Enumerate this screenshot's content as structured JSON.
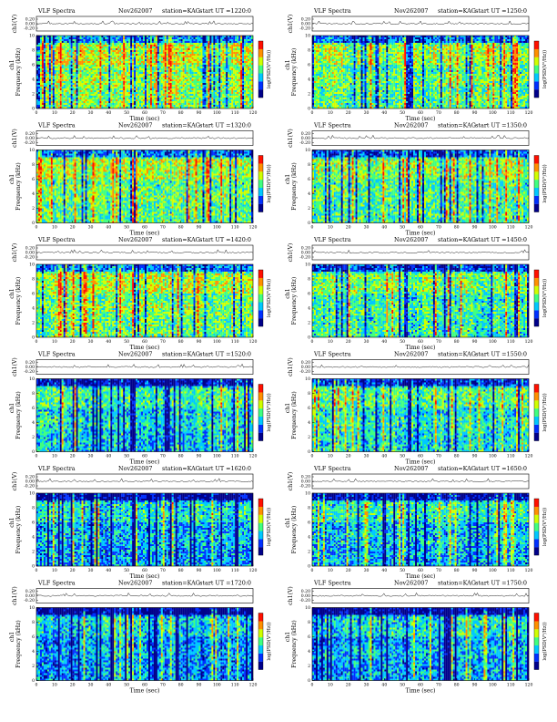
{
  "figure": {
    "header_label": "VLF Spectra",
    "date": "Nov262007",
    "station": "station=KAG",
    "ut_prefix": "start UT ="
  },
  "chart_data": [
    {
      "type": "heatmap",
      "title": "VLF Spectra",
      "date": "Nov262007",
      "station": "station=KAG",
      "start_ut": "1220:0",
      "top_ylabel": "ch1(V)",
      "top_yticks": [
        "0.20",
        "0.00",
        "-0.20"
      ],
      "ylabel": "Frequency (kHz)",
      "channel_label": "ch1",
      "yticks": [
        "0",
        "2",
        "4",
        "6",
        "8",
        "10"
      ],
      "xlabel": "Time (sec)",
      "xticks": [
        "0",
        "10",
        "20",
        "30",
        "40",
        "50",
        "60",
        "70",
        "80",
        "90",
        "100",
        "110",
        "120"
      ],
      "xlim": [
        0,
        120
      ],
      "ylim": [
        0,
        10
      ],
      "colorbar_label": "log(PSD(V²/Hz))",
      "colors": [
        "#00008a",
        "#0030ff",
        "#00c8ff",
        "#40ff80",
        "#d0ff00",
        "#ff9000",
        "#ff1000"
      ],
      "intensity": 0.55
    },
    {
      "type": "heatmap",
      "title": "VLF Spectra",
      "date": "Nov262007",
      "station": "station=KAG",
      "start_ut": "1250:0",
      "top_ylabel": "ch1(V)",
      "top_yticks": [
        "0.20",
        "0.00",
        "-0.20"
      ],
      "ylabel": "Frequency (kHz)",
      "channel_label": "ch1",
      "yticks": [
        "0",
        "2",
        "4",
        "6",
        "8",
        "10"
      ],
      "xlabel": "Time (sec)",
      "xticks": [
        "0",
        "10",
        "20",
        "30",
        "40",
        "50",
        "60",
        "70",
        "80",
        "90",
        "100",
        "110",
        "120"
      ],
      "xlim": [
        0,
        120
      ],
      "ylim": [
        0,
        10
      ],
      "colorbar_label": "log(PSD(V²/Hz))",
      "colors": [
        "#00008a",
        "#0030ff",
        "#00c8ff",
        "#40ff80",
        "#d0ff00",
        "#ff9000",
        "#ff1000"
      ],
      "intensity": 0.5
    },
    {
      "type": "heatmap",
      "title": "VLF Spectra",
      "date": "Nov262007",
      "station": "station=KAG",
      "start_ut": "1320:0",
      "top_ylabel": "ch1(V)",
      "top_yticks": [
        "0.20",
        "0.00",
        "-0.20"
      ],
      "ylabel": "Frequency (kHz)",
      "channel_label": "ch1",
      "yticks": [
        "0",
        "2",
        "4",
        "6",
        "8",
        "10"
      ],
      "xlabel": "Time (sec)",
      "xticks": [
        "0",
        "10",
        "20",
        "30",
        "40",
        "50",
        "60",
        "70",
        "80",
        "90",
        "100",
        "110",
        "120"
      ],
      "xlim": [
        0,
        120
      ],
      "ylim": [
        0,
        10
      ],
      "colorbar_label": "log(PSD(V²/Hz))",
      "colors": [
        "#00008a",
        "#0030ff",
        "#00c8ff",
        "#40ff80",
        "#d0ff00",
        "#ff9000",
        "#ff1000"
      ],
      "intensity": 0.5
    },
    {
      "type": "heatmap",
      "title": "VLF Spectra",
      "date": "Nov262007",
      "station": "station=KAG",
      "start_ut": "1350:0",
      "top_ylabel": "ch1(V)",
      "top_yticks": [
        "0.20",
        "0.00",
        "-0.20"
      ],
      "ylabel": "Frequency (kHz)",
      "channel_label": "ch1",
      "yticks": [
        "0",
        "2",
        "4",
        "6",
        "8",
        "10"
      ],
      "xlabel": "Time (sec)",
      "xticks": [
        "0",
        "10",
        "20",
        "30",
        "40",
        "50",
        "60",
        "70",
        "80",
        "90",
        "100",
        "110",
        "120"
      ],
      "xlim": [
        0,
        120
      ],
      "ylim": [
        0,
        10
      ],
      "colorbar_label": "log(PSD(V²/Hz))",
      "colors": [
        "#00008a",
        "#0030ff",
        "#00c8ff",
        "#40ff80",
        "#d0ff00",
        "#ff9000",
        "#ff1000"
      ],
      "intensity": 0.48
    },
    {
      "type": "heatmap",
      "title": "VLF Spectra",
      "date": "Nov262007",
      "station": "station=KAG",
      "start_ut": "1420:0",
      "top_ylabel": "ch1(V)",
      "top_yticks": [
        "0.20",
        "0.00",
        "-0.20"
      ],
      "ylabel": "Frequency (kHz)",
      "channel_label": "ch1",
      "yticks": [
        "0",
        "2",
        "4",
        "6",
        "8",
        "10"
      ],
      "xlabel": "Time (sec)",
      "xticks": [
        "0",
        "10",
        "20",
        "30",
        "40",
        "50",
        "60",
        "70",
        "80",
        "90",
        "100",
        "110",
        "120"
      ],
      "xlim": [
        0,
        120
      ],
      "ylim": [
        0,
        10
      ],
      "colorbar_label": "log(PSD(V²/Hz))",
      "colors": [
        "#00008a",
        "#0030ff",
        "#00c8ff",
        "#40ff80",
        "#d0ff00",
        "#ff9000",
        "#ff1000"
      ],
      "intensity": 0.52
    },
    {
      "type": "heatmap",
      "title": "VLF Spectra",
      "date": "Nov262007",
      "station": "station=KAG",
      "start_ut": "1450:0",
      "top_ylabel": "ch1(V)",
      "top_yticks": [
        "0.20",
        "0.00",
        "-0.20"
      ],
      "ylabel": "Frequency (kHz)",
      "channel_label": "ch1",
      "yticks": [
        "0",
        "2",
        "4",
        "6",
        "8",
        "10"
      ],
      "xlabel": "Time (sec)",
      "xticks": [
        "0",
        "10",
        "20",
        "30",
        "40",
        "50",
        "60",
        "70",
        "80",
        "90",
        "100",
        "110",
        "120"
      ],
      "xlim": [
        0,
        120
      ],
      "ylim": [
        0,
        10
      ],
      "colorbar_label": "log(PSD(V²/Hz))",
      "colors": [
        "#00008a",
        "#0030ff",
        "#00c8ff",
        "#40ff80",
        "#d0ff00",
        "#ff9000",
        "#ff1000"
      ],
      "intensity": 0.45
    },
    {
      "type": "heatmap",
      "title": "VLF Spectra",
      "date": "Nov262007",
      "station": "station=KAG",
      "start_ut": "1520:0",
      "top_ylabel": "ch1(V)",
      "top_yticks": [
        "0.20",
        "0.00",
        "-0.20"
      ],
      "ylabel": "Frequency (kHz)",
      "channel_label": "ch1",
      "yticks": [
        "0",
        "2",
        "4",
        "6",
        "8",
        "10"
      ],
      "xlabel": "Time (sec)",
      "xticks": [
        "0",
        "10",
        "20",
        "30",
        "40",
        "50",
        "60",
        "70",
        "80",
        "90",
        "100",
        "110",
        "120"
      ],
      "xlim": [
        0,
        120
      ],
      "ylim": [
        0,
        10
      ],
      "colorbar_label": "log(PSD(V²/Hz))",
      "colors": [
        "#00008a",
        "#0030ff",
        "#00c8ff",
        "#40ff80",
        "#d0ff00",
        "#ff9000",
        "#ff1000"
      ],
      "intensity": 0.38
    },
    {
      "type": "heatmap",
      "title": "VLF Spectra",
      "date": "Nov262007",
      "station": "station=KAG",
      "start_ut": "1550:0",
      "top_ylabel": "ch1(V)",
      "top_yticks": [
        "0.20",
        "0.00",
        "-0.20"
      ],
      "ylabel": "Frequency (kHz)",
      "channel_label": "ch1",
      "yticks": [
        "0",
        "2",
        "4",
        "6",
        "8",
        "10"
      ],
      "xlabel": "Time (sec)",
      "xticks": [
        "0",
        "10",
        "20",
        "30",
        "40",
        "50",
        "60",
        "70",
        "80",
        "90",
        "100",
        "110",
        "120"
      ],
      "xlim": [
        0,
        120
      ],
      "ylim": [
        0,
        10
      ],
      "colorbar_label": "log(PSD(V²/Hz))",
      "colors": [
        "#00008a",
        "#0030ff",
        "#00c8ff",
        "#40ff80",
        "#d0ff00",
        "#ff9000",
        "#ff1000"
      ],
      "intensity": 0.4
    },
    {
      "type": "heatmap",
      "title": "VLF Spectra",
      "date": "Nov262007",
      "station": "station=KAG",
      "start_ut": "1620:0",
      "top_ylabel": "ch1(V)",
      "top_yticks": [
        "0.20",
        "0.00",
        "-0.20"
      ],
      "ylabel": "Frequency (kHz)",
      "channel_label": "ch1",
      "yticks": [
        "0",
        "2",
        "4",
        "6",
        "8",
        "10"
      ],
      "xlabel": "Time (sec)",
      "xticks": [
        "0",
        "10",
        "20",
        "30",
        "40",
        "50",
        "60",
        "70",
        "80",
        "90",
        "100",
        "110",
        "120"
      ],
      "xlim": [
        0,
        120
      ],
      "ylim": [
        0,
        10
      ],
      "colorbar_label": "log(PSD(V²/Hz))",
      "colors": [
        "#00008a",
        "#0030ff",
        "#00c8ff",
        "#40ff80",
        "#d0ff00",
        "#ff9000",
        "#ff1000"
      ],
      "intensity": 0.32
    },
    {
      "type": "heatmap",
      "title": "VLF Spectra",
      "date": "Nov262007",
      "station": "station=KAG",
      "start_ut": "1650:0",
      "top_ylabel": "ch1(V)",
      "top_yticks": [
        "0.20",
        "0.00",
        "-0.20"
      ],
      "ylabel": "Frequency (kHz)",
      "channel_label": "ch1",
      "yticks": [
        "0",
        "2",
        "4",
        "6",
        "8",
        "10"
      ],
      "xlabel": "Time (sec)",
      "xticks": [
        "0",
        "10",
        "20",
        "30",
        "40",
        "50",
        "60",
        "70",
        "80",
        "90",
        "100",
        "110",
        "120"
      ],
      "xlim": [
        0,
        120
      ],
      "ylim": [
        0,
        10
      ],
      "colorbar_label": "log(PSD(V²/Hz))",
      "colors": [
        "#00008a",
        "#0030ff",
        "#00c8ff",
        "#40ff80",
        "#d0ff00",
        "#ff9000",
        "#ff1000"
      ],
      "intensity": 0.34
    },
    {
      "type": "heatmap",
      "title": "VLF Spectra",
      "date": "Nov262007",
      "station": "station=KAG",
      "start_ut": "1720:0",
      "top_ylabel": "ch1(V)",
      "top_yticks": [
        "0.20",
        "0.00",
        "-0.20"
      ],
      "ylabel": "Frequency (kHz)",
      "channel_label": "ch1",
      "yticks": [
        "0",
        "2",
        "4",
        "6",
        "8",
        "10"
      ],
      "xlabel": "Time (sec)",
      "xticks": [
        "0",
        "10",
        "20",
        "30",
        "40",
        "50",
        "60",
        "70",
        "80",
        "90",
        "100",
        "110",
        "120"
      ],
      "xlim": [
        0,
        120
      ],
      "ylim": [
        0,
        10
      ],
      "colorbar_label": "log(PSD(V²/Hz))",
      "colors": [
        "#00008a",
        "#0030ff",
        "#00c8ff",
        "#40ff80",
        "#d0ff00",
        "#ff9000",
        "#ff1000"
      ],
      "intensity": 0.3
    },
    {
      "type": "heatmap",
      "title": "VLF Spectra",
      "date": "Nov262007",
      "station": "station=KAG",
      "start_ut": "1750:0",
      "top_ylabel": "ch1(V)",
      "top_yticks": [
        "0.20",
        "0.00",
        "-0.20"
      ],
      "ylabel": "Frequency (kHz)",
      "channel_label": "ch1",
      "yticks": [
        "0",
        "2",
        "4",
        "6",
        "8",
        "10"
      ],
      "xlabel": "Time (sec)",
      "xticks": [
        "0",
        "10",
        "20",
        "30",
        "40",
        "50",
        "60",
        "70",
        "80",
        "90",
        "100",
        "110",
        "120"
      ],
      "xlim": [
        0,
        120
      ],
      "ylim": [
        0,
        10
      ],
      "colorbar_label": "log(PSD(V²/Hz))",
      "colors": [
        "#00008a",
        "#0030ff",
        "#00c8ff",
        "#40ff80",
        "#d0ff00",
        "#ff9000",
        "#ff1000"
      ],
      "intensity": 0.32
    }
  ]
}
